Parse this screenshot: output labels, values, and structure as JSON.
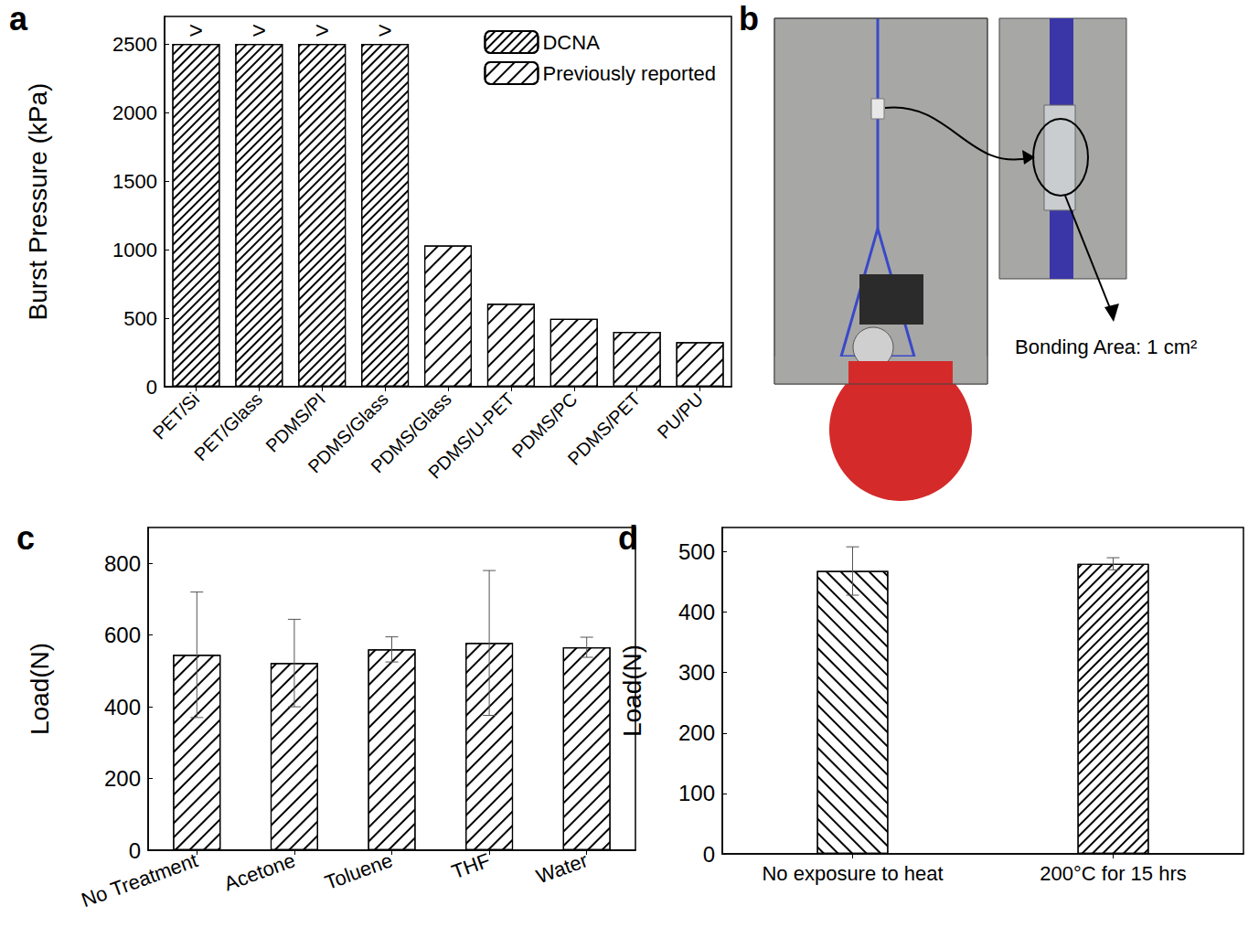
{
  "chart_data": [
    {
      "type": "bar",
      "title": "a",
      "ylabel": "Burst Pressure (kPa)",
      "categories": [
        "PET/Si",
        "PET/Glass",
        "PDMS/PI",
        "PDMS/Glass",
        "PDMS/Glass",
        "PDMS/U-PET",
        "PDMS/PC",
        "PDMS/PET",
        "PU/PU"
      ],
      "series": [
        {
          "name": "DCNA",
          "values": [
            2500,
            2500,
            2500,
            2500,
            null,
            null,
            null,
            null,
            null
          ]
        },
        {
          "name": "Previously reported",
          "values": [
            null,
            null,
            null,
            null,
            1030,
            605,
            495,
            400,
            325
          ]
        }
      ],
      "annotations": [
        {
          "text": ">",
          "series": "DCNA"
        }
      ],
      "ylim": [
        0,
        2700
      ],
      "yticks": [
        0,
        500,
        1000,
        1500,
        2000,
        2500
      ],
      "legend": "upper right",
      "color": "#000000",
      "grid": false
    },
    {
      "type": "bar",
      "title": "c",
      "ylabel": "Load(N)",
      "categories": [
        "No Treatment",
        "Acetone",
        "Toluene",
        "THF",
        "Water"
      ],
      "values": [
        545,
        522,
        560,
        578,
        566
      ],
      "errors": [
        175,
        122,
        35,
        202,
        28
      ],
      "ylim": [
        0,
        900
      ],
      "yticks": [
        0,
        200,
        400,
        600,
        800
      ],
      "color": "#000000",
      "grid": false
    },
    {
      "type": "bar",
      "title": "d",
      "ylabel": "Load(N)",
      "categories": [
        "No exposure to heat",
        "200°C for 15 hrs"
      ],
      "values": [
        468,
        480
      ],
      "errors": [
        40,
        10
      ],
      "ylim": [
        0,
        540
      ],
      "yticks": [
        0,
        100,
        200,
        300,
        400,
        500
      ],
      "color": "#000000",
      "grid": false
    }
  ],
  "photo": {
    "label": "b",
    "annotation": "Bonding Area: 1 cm²"
  }
}
